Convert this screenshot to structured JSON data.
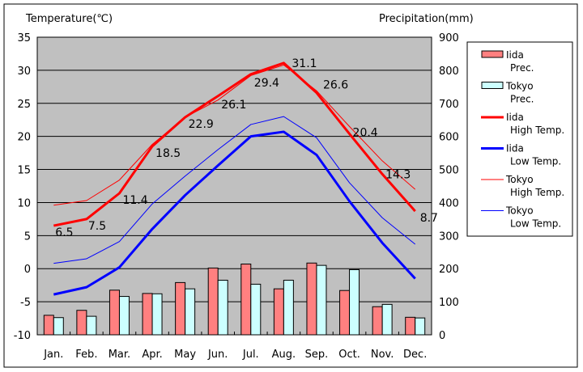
{
  "chart_data": {
    "type": "bar",
    "title": "",
    "categories": [
      "Jan.",
      "Feb.",
      "Mar.",
      "Apr.",
      "May",
      "Jun.",
      "Jul.",
      "Aug.",
      "Sep.",
      "Oct.",
      "Nov.",
      "Dec."
    ],
    "ylabel_left": "Temperature(℃)",
    "ylabel_right": "Precipitation(mm)",
    "ylim_left": [
      -10,
      35
    ],
    "yticks_left": [
      "35",
      "30",
      "25",
      "20",
      "15",
      "10",
      "5",
      "0",
      "-5",
      "-10"
    ],
    "ylim_right": [
      0,
      900
    ],
    "yticks_right": [
      "900",
      "800",
      "700",
      "600",
      "500",
      "400",
      "300",
      "200",
      "100",
      "0"
    ],
    "grid": true,
    "legend_position": "right",
    "bar_series": [
      {
        "name": "Iida Prec.",
        "legend_line1": "Iida",
        "legend_line2": "Prec.",
        "color": "#ff8080",
        "values": [
          59,
          74,
          135,
          125,
          158,
          202,
          214,
          139,
          217,
          134,
          85,
          53
        ]
      },
      {
        "name": "Tokyo Prec.",
        "legend_line1": "Tokyo",
        "legend_line2": "Prec.",
        "color": "#ccffff",
        "values": [
          52,
          56,
          116,
          124,
          139,
          165,
          153,
          165,
          210,
          197,
          92,
          51
        ]
      }
    ],
    "line_series": [
      {
        "name": "Iida High Temp.",
        "legend_line1": "Iida",
        "legend_line2": "High Temp.",
        "color": "#ff0000",
        "width": "thick",
        "values": [
          6.5,
          7.5,
          11.4,
          18.5,
          22.9,
          26.1,
          29.4,
          31.1,
          26.6,
          20.4,
          14.3,
          8.7
        ],
        "labels": [
          "6.5",
          "7.5",
          "11.4",
          "18.5",
          "22.9",
          "26.1",
          "29.4",
          "31.1",
          "26.6",
          "20.4",
          "14.3",
          "8.7"
        ]
      },
      {
        "name": "Iida Low Temp.",
        "legend_line1": "Iida",
        "legend_line2": "Low Temp.",
        "color": "#0000ff",
        "width": "thick",
        "values": [
          -3.9,
          -2.8,
          0.2,
          6.0,
          11.1,
          15.6,
          20.0,
          20.7,
          17.2,
          10.2,
          3.9,
          -1.5
        ]
      },
      {
        "name": "Tokyo High Temp.",
        "legend_line1": "Tokyo",
        "legend_line2": "High Temp.",
        "color": "#ff0000",
        "width": "thin",
        "values": [
          9.6,
          10.3,
          13.4,
          18.8,
          22.9,
          25.5,
          29.2,
          30.8,
          26.9,
          21.5,
          16.3,
          12.0
        ]
      },
      {
        "name": "Tokyo Low Temp.",
        "legend_line1": "Tokyo",
        "legend_line2": "Low Temp.",
        "color": "#0000ff",
        "width": "thin",
        "values": [
          0.8,
          1.5,
          4.1,
          9.8,
          14.0,
          18.0,
          21.8,
          23.0,
          19.8,
          13.0,
          7.7,
          3.7
        ]
      }
    ]
  }
}
